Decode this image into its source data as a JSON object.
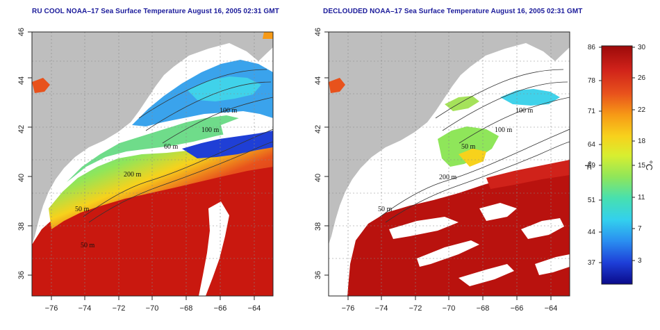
{
  "left_panel": {
    "title": "RU COOL NOAA–17 Sea Surface Temperature August 16, 2005 02:31 GMT",
    "isobath_labels": [
      "100 m",
      "100 m",
      "60 m",
      "200 m",
      "50 m",
      "50 m"
    ]
  },
  "right_panel": {
    "title": "DECLOUDED NOAA–17 Sea Surface Temperature August 16, 2005 02:31 GMT",
    "isobath_labels": [
      "100 m",
      "100 m",
      "50 m",
      "200 m",
      "50 m"
    ]
  },
  "axes": {
    "x_ticks": [
      "−76",
      "−74",
      "−72",
      "−70",
      "−68",
      "−66",
      "−64"
    ],
    "y_ticks": [
      "46",
      "44",
      "42",
      "40",
      "38",
      "36"
    ]
  },
  "colorbar": {
    "fahrenheit_label": "°F",
    "celsius_label": "°C",
    "fahrenheit_ticks": [
      "86",
      "78",
      "71",
      "64",
      "59",
      "51",
      "44",
      "37"
    ],
    "celsius_ticks": [
      "30",
      "26",
      "22",
      "18",
      "15",
      "11",
      "7",
      "3"
    ],
    "colors": [
      "#0a0a8a",
      "#1e3fd8",
      "#2a8ef0",
      "#33d0ee",
      "#47e0b0",
      "#8fe65a",
      "#d8ee30",
      "#f7d21c",
      "#f79a16",
      "#e8521c",
      "#d0221a",
      "#9c0a0a"
    ]
  },
  "colors": {
    "land": "#bebebe",
    "cloud": "#ffffff",
    "title": "#1a1a9a"
  }
}
